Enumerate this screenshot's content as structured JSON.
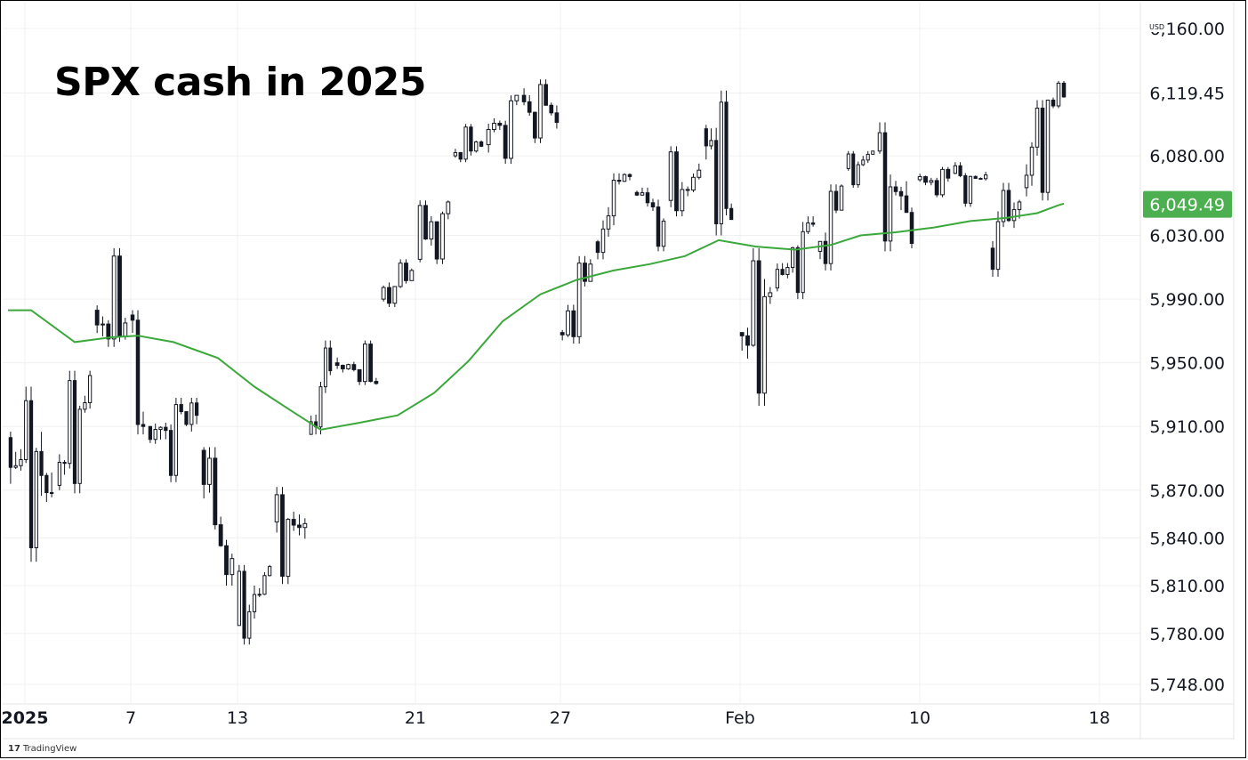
{
  "title": "SPX cash in 2025",
  "currency": "USD",
  "brand": {
    "mark": "17",
    "name": "TradingView"
  },
  "colors": {
    "moving_average": "#3aa83a",
    "last_price_badge": "#4caf50",
    "candle_up_fill": "#ffffff",
    "candle_down_fill": "#131722",
    "candle_outline": "#131722",
    "grid": "#f0f0f0"
  },
  "chart_data": {
    "type": "candlestick",
    "title": "SPX cash in 2025",
    "y_axis": {
      "ticks": [
        "6,160.00",
        "6,119.45",
        "6,080.00",
        "6,030.00",
        "5,990.00",
        "5,950.00",
        "5,910.00",
        "5,870.00",
        "5,840.00",
        "5,810.00",
        "5,780.00",
        "5,748.00"
      ],
      "range": [
        5741,
        6164
      ]
    },
    "last_price": "6,049.49",
    "x_axis": {
      "ticks": [
        "2025",
        "7",
        "13",
        "21",
        "27",
        "Feb",
        "10",
        "18"
      ]
    },
    "grid": true,
    "timeframe": "hourly candles, regular session",
    "series": [
      {
        "name": "",
        "kind": "ohlc",
        "sessions": [
          {
            "date": "2025-01-02",
            "open": 5903,
            "high": 5935,
            "low": 5825,
            "close": 5868
          },
          {
            "date": "2025-01-03",
            "open": 5873,
            "high": 5945,
            "low": 5868,
            "close": 5942
          },
          {
            "date": "2025-01-06",
            "open": 5983,
            "high": 6022,
            "low": 5960,
            "close": 5975
          },
          {
            "date": "2025-01-07",
            "open": 5980,
            "high": 5983,
            "low": 5905,
            "close": 5910
          },
          {
            "date": "2025-01-08",
            "open": 5910,
            "high": 5928,
            "low": 5875,
            "close": 5917
          },
          {
            "date": "2025-01-10",
            "open": 5895,
            "high": 5897,
            "low": 5810,
            "close": 5827
          },
          {
            "date": "2025-01-13",
            "open": 5785,
            "high": 5823,
            "low": 5773,
            "close": 5822
          },
          {
            "date": "2025-01-14",
            "open": 5850,
            "high": 5872,
            "low": 5811,
            "close": 5849
          },
          {
            "date": "2025-01-15",
            "open": 5905,
            "high": 5964,
            "low": 5905,
            "close": 5945
          },
          {
            "date": "2025-01-16",
            "open": 5950,
            "high": 5964,
            "low": 5936,
            "close": 5937
          },
          {
            "date": "2025-01-17",
            "open": 5990,
            "high": 6015,
            "low": 5985,
            "close": 6008
          },
          {
            "date": "2025-01-21",
            "open": 6015,
            "high": 6052,
            "low": 6012,
            "close": 6051
          },
          {
            "date": "2025-01-22",
            "open": 6080,
            "high": 6100,
            "low": 6076,
            "close": 6086
          },
          {
            "date": "2025-01-23",
            "open": 6087,
            "high": 6118,
            "low": 6075,
            "close": 6118
          },
          {
            "date": "2025-01-24",
            "open": 6118,
            "high": 6128,
            "low": 6088,
            "close": 6101
          },
          {
            "date": "2025-01-27",
            "open": 5969,
            "high": 6017,
            "low": 5962,
            "close": 6012
          },
          {
            "date": "2025-01-28",
            "open": 6026,
            "high": 6069,
            "low": 6015,
            "close": 6067
          },
          {
            "date": "2025-01-29",
            "open": 6057,
            "high": 6060,
            "low": 6020,
            "close": 6039
          },
          {
            "date": "2025-01-30",
            "open": 6052,
            "high": 6086,
            "low": 6042,
            "close": 6071
          },
          {
            "date": "2025-01-31",
            "open": 6097,
            "high": 6121,
            "low": 6030,
            "close": 6040
          },
          {
            "date": "2025-02-03",
            "open": 5969,
            "high": 6022,
            "low": 5923,
            "close": 5994
          },
          {
            "date": "2025-02-04",
            "open": 5997,
            "high": 6042,
            "low": 5990,
            "close": 6037
          },
          {
            "date": "2025-02-05",
            "open": 6020,
            "high": 6062,
            "low": 6008,
            "close": 6061
          },
          {
            "date": "2025-02-06",
            "open": 6072,
            "high": 6083,
            "low": 6060,
            "close": 6083
          },
          {
            "date": "2025-02-07",
            "open": 6083,
            "high": 6101,
            "low": 6020,
            "close": 6025
          },
          {
            "date": "2025-02-10",
            "open": 6065,
            "high": 6073,
            "low": 6054,
            "close": 6066
          },
          {
            "date": "2025-02-11",
            "open": 6069,
            "high": 6076,
            "low": 6048,
            "close": 6068
          },
          {
            "date": "2025-02-12",
            "open": 6022,
            "high": 6063,
            "low": 6004,
            "close": 6051
          },
          {
            "date": "2025-02-13",
            "open": 6060,
            "high": 6115,
            "low": 6052,
            "close": 6115
          },
          {
            "date": "2025-02-14",
            "open": 6115,
            "high": 6127,
            "low": 6110,
            "close": 6117
          }
        ]
      },
      {
        "name": "",
        "kind": "moving-average",
        "color": "#3aa83a",
        "points": [
          {
            "date": "2025-01-02",
            "value": 5983
          },
          {
            "date": "2025-01-03",
            "value": 5963
          },
          {
            "date": "2025-01-06",
            "value": 5966
          },
          {
            "date": "2025-01-07",
            "value": 5967
          },
          {
            "date": "2025-01-08",
            "value": 5963
          },
          {
            "date": "2025-01-10",
            "value": 5953
          },
          {
            "date": "2025-01-13",
            "value": 5935
          },
          {
            "date": "2025-01-14",
            "value": 5920
          },
          {
            "date": "2025-01-15",
            "value": 5908
          },
          {
            "date": "2025-01-16",
            "value": 5912
          },
          {
            "date": "2025-01-17",
            "value": 5917
          },
          {
            "date": "2025-01-21",
            "value": 5931
          },
          {
            "date": "2025-01-22",
            "value": 5951
          },
          {
            "date": "2025-01-23",
            "value": 5976
          },
          {
            "date": "2025-01-24",
            "value": 5993
          },
          {
            "date": "2025-01-27",
            "value": 6002
          },
          {
            "date": "2025-01-28",
            "value": 6008
          },
          {
            "date": "2025-01-29",
            "value": 6012
          },
          {
            "date": "2025-01-30",
            "value": 6017
          },
          {
            "date": "2025-01-31",
            "value": 6027
          },
          {
            "date": "2025-02-03",
            "value": 6023
          },
          {
            "date": "2025-02-04",
            "value": 6021
          },
          {
            "date": "2025-02-05",
            "value": 6024
          },
          {
            "date": "2025-02-06",
            "value": 6030
          },
          {
            "date": "2025-02-07",
            "value": 6032
          },
          {
            "date": "2025-02-10",
            "value": 6035
          },
          {
            "date": "2025-02-11",
            "value": 6039
          },
          {
            "date": "2025-02-12",
            "value": 6041
          },
          {
            "date": "2025-02-13",
            "value": 6044
          },
          {
            "date": "2025-02-14",
            "value": 6049
          }
        ]
      }
    ]
  }
}
